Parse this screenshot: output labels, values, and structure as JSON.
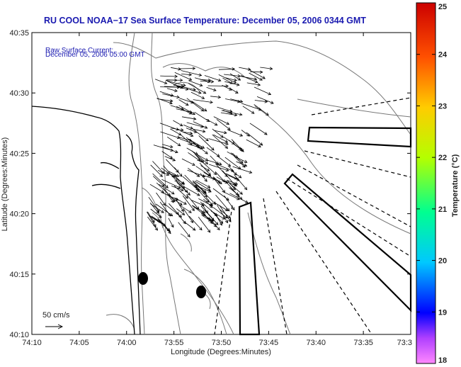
{
  "title": "RU COOL  NOAA−17  Sea Surface Temperature:  December 05, 2006 0344 GMT",
  "current_label": {
    "line1": "Raw Surface Current:",
    "line2": "December 05, 2006 05:00 GMT"
  },
  "scale_label": "50 cm/s",
  "xlabel": "Longitude (Degrees:Minutes)",
  "ylabel": "Latitude (Degrees:Minutes)",
  "x_ticks": [
    "74:10",
    "74:05",
    "74:00",
    "73:55",
    "73:50",
    "73:45",
    "73:40",
    "73:35",
    "73:3"
  ],
  "y_ticks": [
    "40:10",
    "40:15",
    "40:20",
    "40:25",
    "40:30",
    "40:35"
  ],
  "colorbar": {
    "label": "Temperature (°C)",
    "ticks": [
      "18",
      "19",
      "20",
      "21",
      "22",
      "23",
      "24",
      "25"
    ],
    "range": [
      18,
      25
    ]
  },
  "colors": {
    "title": "#1a1ab0",
    "coastline": "#000000",
    "bathymetry": "#777777",
    "vectors": "#000000"
  },
  "chart_data": {
    "type": "map",
    "xlim": [
      "74:10",
      "73:30"
    ],
    "ylim": [
      "40:10",
      "40:35"
    ],
    "sst_range_c": [
      18,
      25
    ]
  }
}
